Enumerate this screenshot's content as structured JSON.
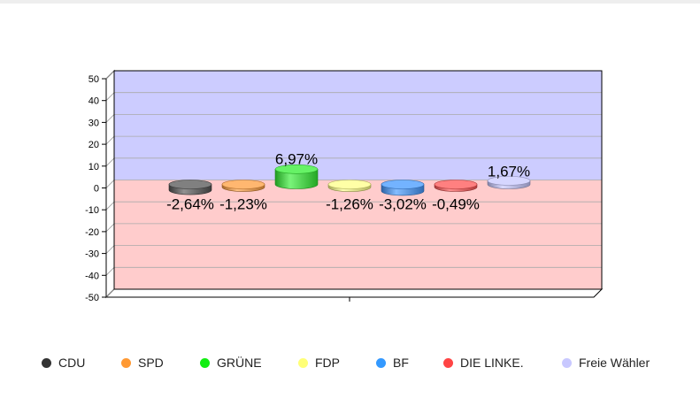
{
  "chart_data": {
    "type": "bar",
    "categories": [
      "CDU",
      "SPD",
      "GRÜNE",
      "FDP",
      "BF",
      "DIE LINKE.",
      "Freie Wähler"
    ],
    "values": [
      -2.64,
      -1.23,
      6.97,
      -1.26,
      -3.02,
      -0.49,
      1.67
    ],
    "value_labels": [
      "-2,64%",
      "-1,23%",
      "6,97%",
      "-1,26%",
      "-3,02%",
      "-0,49%",
      "1,67%"
    ],
    "colors": [
      "#555555",
      "#ff9f40",
      "#33ee33",
      "#ffff88",
      "#4499ff",
      "#ff5555",
      "#c8c8ff"
    ],
    "y_ticks": [
      50,
      40,
      30,
      20,
      10,
      0,
      -10,
      -20,
      -30,
      -40,
      -50
    ],
    "ylim": [
      -50,
      50
    ],
    "grid": true,
    "legend_position": "bottom",
    "background_positive": "#ccccff",
    "background_negative": "#ffcccc"
  },
  "legend": [
    {
      "label": "CDU",
      "color": "#333333"
    },
    {
      "label": "SPD",
      "color": "#ff9933"
    },
    {
      "label": "GRÜNE",
      "color": "#11ee11"
    },
    {
      "label": "FDP",
      "color": "#ffff77"
    },
    {
      "label": "BF",
      "color": "#3399ff"
    },
    {
      "label": "DIE LINKE.",
      "color": "#ff4444"
    },
    {
      "label": "Freie Wähler",
      "color": "#c8c8ff"
    }
  ]
}
